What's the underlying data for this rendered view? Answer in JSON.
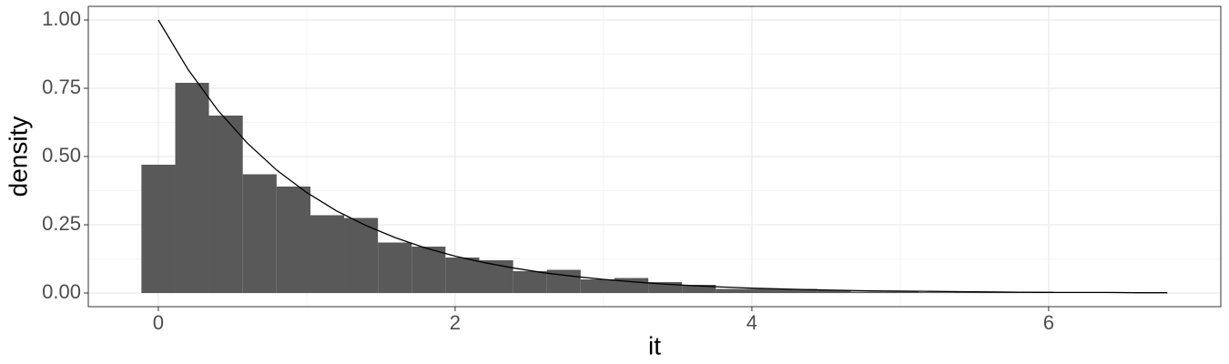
{
  "chart_data": {
    "type": "histogram",
    "xlabel": "it",
    "ylabel": "density",
    "color": "#595959",
    "grid": true,
    "bins": [
      -0.114,
      0.114,
      0.341,
      0.569,
      0.797,
      1.025,
      1.252,
      1.48,
      1.708,
      1.935,
      2.163,
      2.391,
      2.618,
      2.846,
      3.074,
      3.302,
      3.529,
      3.757,
      3.985,
      4.212,
      4.44,
      4.668,
      4.895,
      5.123,
      5.351,
      5.578,
      5.806,
      6.034,
      6.261,
      6.489,
      6.717
    ],
    "values": [
      0.47,
      0.77,
      0.65,
      0.435,
      0.39,
      0.285,
      0.275,
      0.185,
      0.17,
      0.13,
      0.12,
      0.08,
      0.085,
      0.05,
      0.055,
      0.04,
      0.03,
      0.015,
      0.015,
      0.015,
      0.01,
      0.005,
      0.005,
      0.003,
      0.005,
      0.002,
      0.005,
      0.002,
      0.002,
      0.002
    ],
    "curve": {
      "type": "line",
      "color": "#000000",
      "x": [
        0,
        0.2,
        0.4,
        0.6,
        0.8,
        1.0,
        1.2,
        1.4,
        1.6,
        1.8,
        2.0,
        2.2,
        2.4,
        2.6,
        2.8,
        3.0,
        3.2,
        3.4,
        3.6,
        3.8,
        4.0,
        4.2,
        4.4,
        4.6,
        4.8,
        5.0,
        5.2,
        5.4,
        5.6,
        5.8,
        6.0,
        6.2,
        6.4,
        6.6,
        6.8
      ],
      "values": [
        1,
        0.819,
        0.67,
        0.549,
        0.449,
        0.368,
        0.301,
        0.247,
        0.202,
        0.165,
        0.135,
        0.111,
        0.091,
        0.074,
        0.061,
        0.05,
        0.041,
        0.033,
        0.027,
        0.022,
        0.018,
        0.015,
        0.012,
        0.01,
        0.008,
        0.007,
        0.006,
        0.005,
        0.004,
        0.003,
        0.002,
        0.002,
        0.002,
        0.001,
        0.001
      ]
    },
    "xlim": [
      -0.472,
      7.16
    ],
    "xticks": [
      0,
      2,
      4,
      6
    ],
    "ylim": [
      -0.05,
      1.05
    ],
    "yticks": [
      {
        "value": 0,
        "label": "0.00"
      },
      {
        "value": 0.25,
        "label": "0.25"
      },
      {
        "value": 0.5,
        "label": "0.50"
      },
      {
        "value": 0.75,
        "label": "0.75"
      },
      {
        "value": 1,
        "label": "1.00"
      }
    ]
  }
}
